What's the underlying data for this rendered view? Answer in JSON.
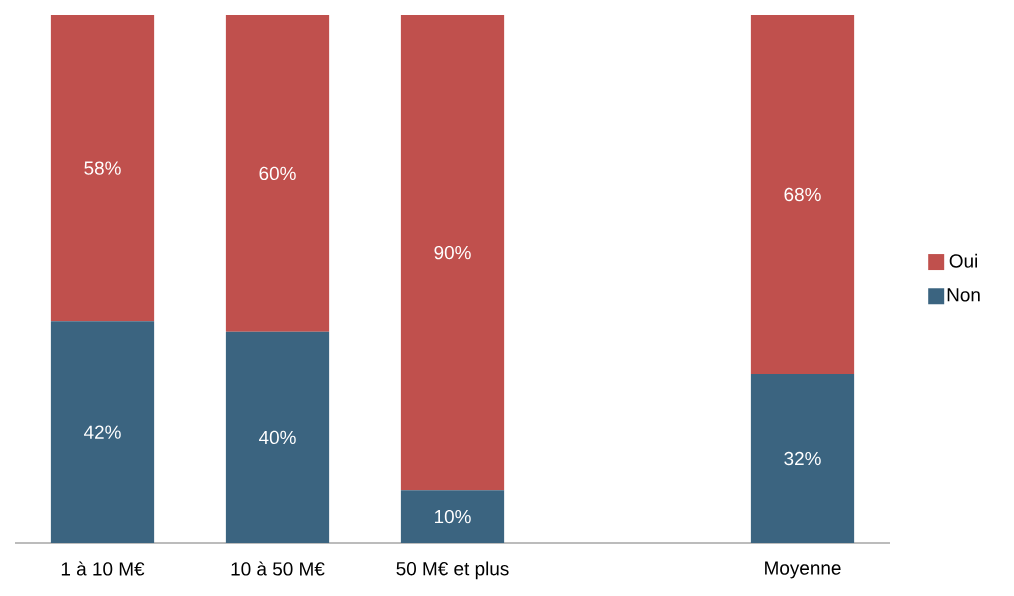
{
  "chart_data": {
    "type": "bar",
    "stacked": true,
    "categories": [
      "1 à 10 M€",
      "10 à 50 M€",
      "50 M€ et plus",
      null,
      "Moyenne"
    ],
    "series": [
      {
        "name": "Non",
        "color": "#3b6480",
        "values": [
          42,
          40,
          10,
          null,
          32
        ],
        "value_labels": [
          "42%",
          "40%",
          "10%",
          null,
          "32%"
        ]
      },
      {
        "name": "Oui",
        "color": "#c0504d",
        "values": [
          58,
          60,
          90,
          null,
          68
        ],
        "value_labels": [
          "58%",
          "60%",
          "90%",
          null,
          "68%"
        ]
      }
    ],
    "ylim": [
      0,
      100
    ],
    "tick_labels": "x",
    "legend": "right"
  }
}
